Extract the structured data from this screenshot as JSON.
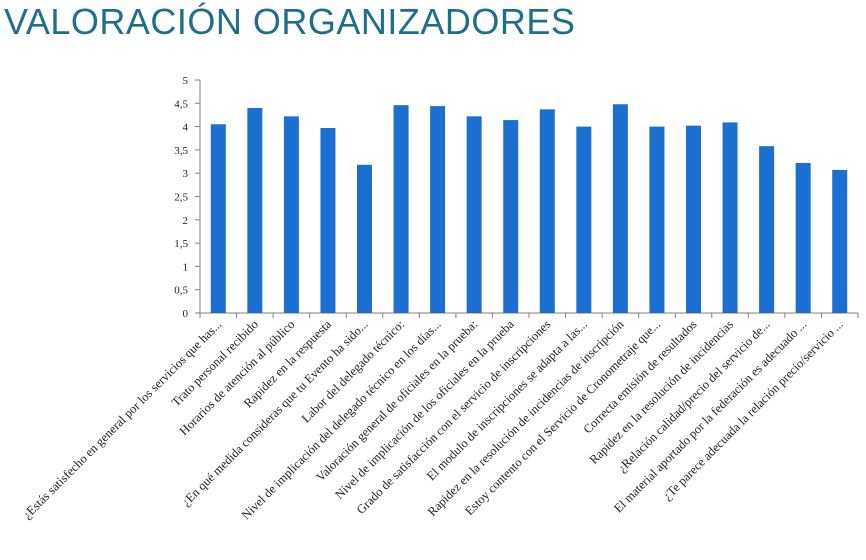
{
  "title": "VALORACIÓN ORGANIZADORES",
  "colors": {
    "bar": "#1b6fd0",
    "title": "#1f6f8a",
    "axis": "#7f7f7f"
  },
  "chart_data": {
    "type": "bar",
    "title": "",
    "xlabel": "",
    "ylabel": "",
    "ylim": [
      0,
      5
    ],
    "yticks": [
      "0",
      "0,5",
      "1",
      "1,5",
      "2",
      "2,5",
      "3",
      "3,5",
      "4",
      "4,5",
      "5"
    ],
    "grid": false,
    "legend": "none",
    "categories": [
      "¿Estás satisfecho en general por los servicios que has...",
      "Trato personal recibido",
      "Horarios de atención al público",
      "Rapidez en la respuesta",
      "¿En qué medida consideras que tu Evento ha sido...",
      "Labor del delegado técnico:",
      "Nivel de implicación del delegado técnico en los días...",
      "Valoración general de oficiales en la prueba:",
      "Nivel de implicación de los oficiales en la prueba",
      "Grado de satisfacción con el servicio de inscripciones",
      "El modulo de inscripciones se adapta a las...",
      "Rapidez en la resolución de incidencias de inscripción",
      "Estoy contento con el Servicio de Cronometraje que...",
      "Correcta emisión de resultados",
      "Rapidez en la resolución de incidencias",
      "¿Relación calidad/precio del servicio de...",
      "El material aportado por la federación es adecuado ...",
      "¿Te parece adecuada la relación precio/servicio ..."
    ],
    "values": [
      4.05,
      4.4,
      4.22,
      3.97,
      3.18,
      4.46,
      4.44,
      4.22,
      4.14,
      4.37,
      4.0,
      4.48,
      4.0,
      4.02,
      4.09,
      3.58,
      3.22,
      3.07
    ]
  }
}
